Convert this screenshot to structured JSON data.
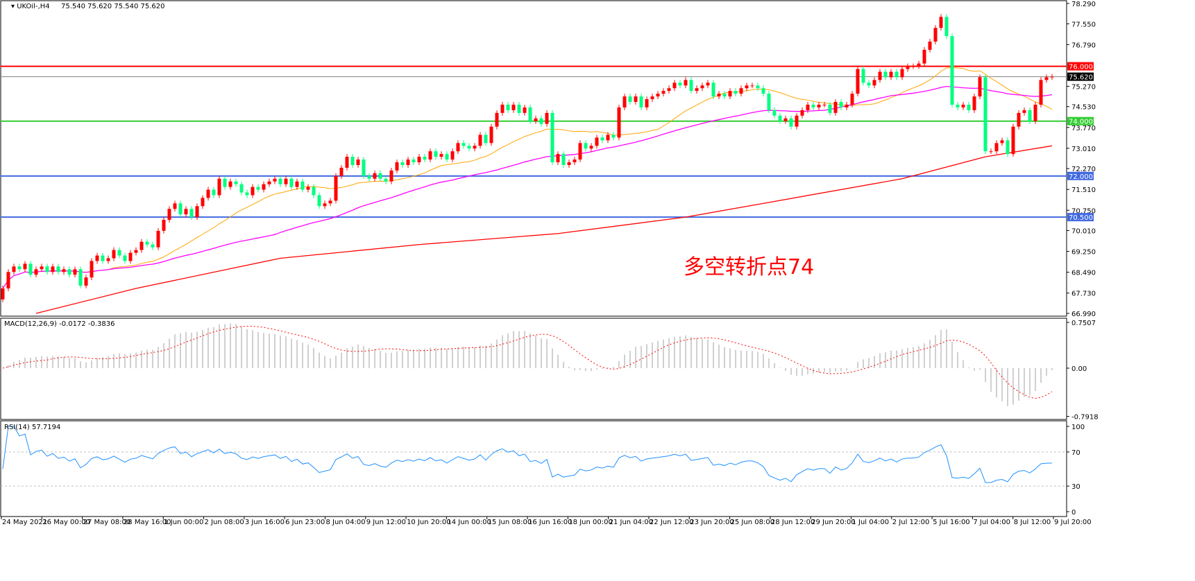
{
  "header": {
    "symbol": "UKOil-,H4",
    "ohlc": "75.540 75.620 75.540 75.620"
  },
  "macd_label": "MACD(12,26,9) -0.0172 -0.3836",
  "rsi_label": "RSI(14) 57.7194",
  "annotation": "多空转折点74",
  "colors": {
    "bull": "#ff0000",
    "bear": "#00ff7f",
    "ma_fast": "#ffa500",
    "ma_mid": "#ff00ff",
    "ma_long": "#ff0000",
    "macd_hist": "#c0c0c0",
    "macd_signal": "#ff0000",
    "rsi": "#1e90ff"
  },
  "chart_data": {
    "type": "candlestick",
    "symbol": "UKOil-",
    "timeframe": "H4",
    "price_axis": {
      "range": [
        66.99,
        78.29
      ],
      "ticks": [
        "78.290",
        "77.550",
        "76.790",
        "75.270",
        "74.530",
        "73.770",
        "73.010",
        "72.270",
        "71.510",
        "70.750",
        "70.010",
        "69.250",
        "68.490",
        "67.730",
        "66.990"
      ]
    },
    "levels": [
      {
        "price": 76.0,
        "label": "76.000",
        "color": "#ff0000"
      },
      {
        "price": 74.0,
        "label": "74.000",
        "color": "#32cd32"
      },
      {
        "price": 72.0,
        "label": "72.000",
        "color": "#4169e1"
      },
      {
        "price": 70.5,
        "label": "70.500",
        "color": "#4169e1"
      }
    ],
    "current_price": {
      "price": 75.62,
      "label": "75.620",
      "color": "#808080"
    },
    "first_open": 67.5,
    "closes": [
      67.9,
      68.5,
      68.7,
      68.6,
      68.8,
      68.4,
      68.6,
      68.7,
      68.5,
      68.7,
      68.5,
      68.6,
      68.4,
      68.6,
      68.0,
      68.3,
      68.9,
      69.1,
      68.9,
      69.0,
      69.3,
      69.1,
      68.9,
      69.2,
      69.3,
      69.6,
      69.5,
      69.4,
      70.0,
      70.4,
      70.8,
      71.0,
      70.6,
      70.8,
      70.5,
      70.9,
      71.2,
      71.5,
      71.3,
      71.9,
      71.6,
      71.8,
      71.7,
      71.4,
      71.3,
      71.6,
      71.5,
      71.7,
      71.8,
      71.9,
      71.7,
      71.9,
      71.6,
      71.8,
      71.5,
      71.6,
      71.3,
      70.9,
      71.0,
      71.1,
      72.0,
      72.3,
      72.7,
      72.4,
      72.6,
      72.0,
      71.9,
      72.1,
      71.9,
      71.8,
      72.2,
      72.5,
      72.4,
      72.6,
      72.5,
      72.7,
      72.6,
      72.9,
      72.7,
      72.8,
      72.6,
      72.9,
      73.2,
      73.1,
      73.0,
      73.1,
      73.5,
      73.2,
      73.8,
      74.3,
      74.6,
      74.4,
      74.6,
      74.3,
      74.5,
      74.0,
      74.1,
      73.9,
      74.3,
      72.5,
      72.8,
      72.4,
      72.5,
      72.6,
      73.2,
      73.0,
      73.1,
      73.4,
      73.3,
      73.5,
      73.4,
      74.5,
      74.9,
      74.7,
      74.9,
      74.5,
      74.8,
      74.9,
      75.0,
      75.1,
      75.2,
      75.4,
      75.3,
      75.5,
      75.1,
      75.2,
      75.3,
      75.4,
      74.9,
      75.0,
      74.9,
      75.1,
      75.0,
      75.2,
      75.3,
      75.3,
      75.2,
      75.0,
      74.4,
      74.2,
      74.0,
      74.1,
      73.8,
      74.2,
      74.4,
      74.6,
      74.5,
      74.6,
      74.6,
      74.3,
      74.7,
      74.5,
      74.6,
      75.0,
      75.9,
      75.4,
      75.3,
      75.5,
      75.8,
      75.6,
      75.8,
      75.6,
      75.9,
      76.0,
      76.0,
      76.1,
      76.6,
      76.9,
      77.4,
      77.8,
      77.1,
      74.6,
      74.5,
      74.6,
      74.4,
      74.9,
      75.6,
      72.9,
      72.9,
      73.2,
      73.3,
      72.8,
      73.8,
      74.3,
      74.4,
      74.0,
      74.6,
      75.5,
      75.6,
      75.62
    ],
    "ma_long_points": [
      [
        6,
        66.99
      ],
      [
        24,
        67.9
      ],
      [
        50,
        69.0
      ],
      [
        75,
        69.5
      ],
      [
        100,
        69.9
      ],
      [
        123,
        70.5
      ],
      [
        137,
        71.0
      ],
      [
        162,
        71.9
      ],
      [
        177,
        72.7
      ],
      [
        189,
        73.1
      ]
    ],
    "macd": {
      "range": [
        -0.7918,
        0.7507
      ],
      "ticks": [
        "0.7507",
        "0.00",
        "-0.7918"
      ]
    },
    "rsi": {
      "range": [
        0,
        100
      ],
      "ticks": [
        "100",
        "70",
        "30",
        "0"
      ],
      "levels": [
        70,
        30
      ]
    },
    "time_labels": [
      "24 May 2021",
      "26 May 00:00",
      "27 May 08:00",
      "28 May 16:00",
      "1 Jun 00:00",
      "2 Jun 08:00",
      "3 Jun 16:00",
      "6 Jun 23:00",
      "8 Jun 04:00",
      "9 Jun 12:00",
      "10 Jun 20:00",
      "14 Jun 00:00",
      "15 Jun 08:00",
      "16 Jun 16:00",
      "18 Jun 00:00",
      "21 Jun 04:00",
      "22 Jun 12:00",
      "23 Jun 20:00",
      "25 Jun 08:00",
      "28 Jun 12:00",
      "29 Jun 20:00",
      "1 Jul 04:00",
      "2 Jul 12:00",
      "5 Jul 16:00",
      "7 Jul 04:00",
      "8 Jul 12:00",
      "9 Jul 20:00"
    ]
  }
}
